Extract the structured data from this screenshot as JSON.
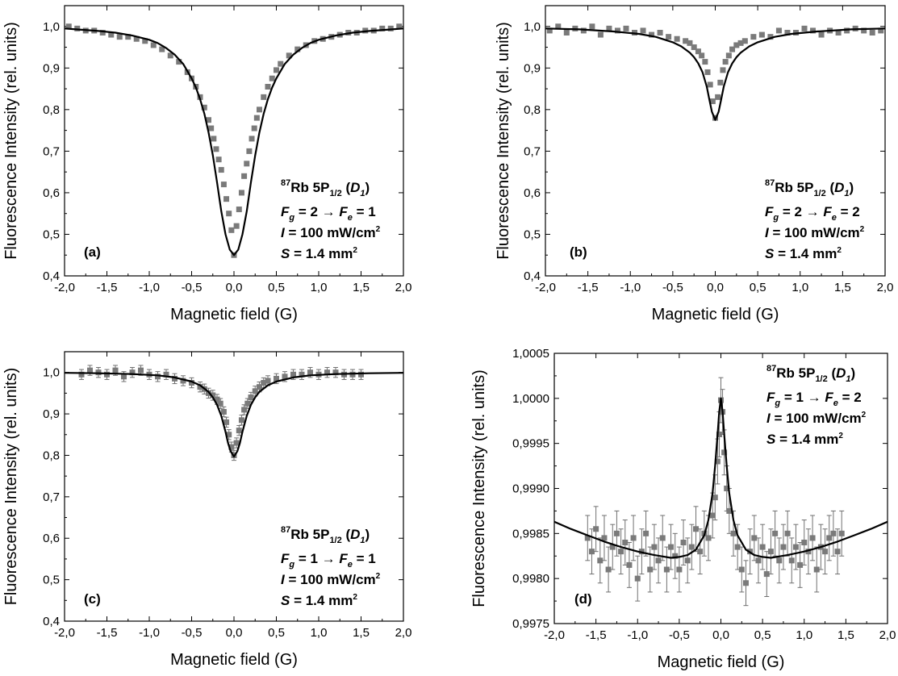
{
  "chart_data": [
    {
      "panel": "(a)",
      "type": "scatter",
      "xlabel": "Magnetic field (G)",
      "ylabel": "Fluorescence Intensity (rel. units)",
      "xlim": [
        -2.0,
        2.0
      ],
      "ylim": [
        0.4,
        1.05
      ],
      "x_ticks": [
        "-2,0",
        "-1,5",
        "-1,0",
        "-0,5",
        "0,0",
        "0,5",
        "1,0",
        "1,5",
        "2,0"
      ],
      "y_ticks": [
        "0,4",
        "0,5",
        "0,6",
        "0,7",
        "0,8",
        "0,9",
        "1,0"
      ],
      "annotation": {
        "isotope": "87",
        "element_level": "Rb 5P",
        "sub": "1/2",
        "line": "D",
        "line_sub": "1",
        "transition": {
          "Fg": "2",
          "Fe": "1"
        },
        "intensity": "= 100 mW/cm",
        "area": "= 1.4 mm"
      },
      "series": [
        {
          "kind": "points",
          "x": [
            -1.95,
            -1.85,
            -1.75,
            -1.65,
            -1.55,
            -1.45,
            -1.35,
            -1.25,
            -1.15,
            -1.05,
            -0.95,
            -0.85,
            -0.75,
            -0.65,
            -0.55,
            -0.5,
            -0.45,
            -0.4,
            -0.35,
            -0.3,
            -0.27,
            -0.24,
            -0.21,
            -0.18,
            -0.15,
            -0.12,
            -0.09,
            -0.06,
            -0.03,
            0.0,
            0.03,
            0.06,
            0.09,
            0.12,
            0.15,
            0.18,
            0.21,
            0.24,
            0.27,
            0.3,
            0.35,
            0.4,
            0.45,
            0.5,
            0.55,
            0.65,
            0.75,
            0.85,
            0.95,
            1.05,
            1.15,
            1.25,
            1.35,
            1.45,
            1.55,
            1.65,
            1.75,
            1.85,
            1.95
          ],
          "y": [
            1.0,
            0.995,
            0.99,
            0.99,
            0.985,
            0.98,
            0.975,
            0.975,
            0.97,
            0.965,
            0.955,
            0.945,
            0.93,
            0.915,
            0.89,
            0.875,
            0.855,
            0.83,
            0.805,
            0.775,
            0.755,
            0.73,
            0.705,
            0.68,
            0.655,
            0.62,
            0.585,
            0.55,
            0.51,
            0.45,
            0.52,
            0.56,
            0.6,
            0.64,
            0.67,
            0.7,
            0.73,
            0.755,
            0.78,
            0.8,
            0.83,
            0.855,
            0.875,
            0.895,
            0.91,
            0.93,
            0.945,
            0.955,
            0.965,
            0.97,
            0.975,
            0.98,
            0.985,
            0.985,
            0.99,
            0.99,
            0.995,
            0.995,
            1.0
          ]
        },
        {
          "kind": "curve",
          "x": [
            -2.0,
            -1.8,
            -1.6,
            -1.4,
            -1.2,
            -1.0,
            -0.9,
            -0.8,
            -0.7,
            -0.6,
            -0.5,
            -0.45,
            -0.4,
            -0.35,
            -0.3,
            -0.25,
            -0.2,
            -0.15,
            -0.1,
            -0.05,
            0.0,
            0.05,
            0.1,
            0.15,
            0.2,
            0.25,
            0.3,
            0.35,
            0.4,
            0.45,
            0.5,
            0.6,
            0.7,
            0.8,
            0.9,
            1.0,
            1.2,
            1.4,
            1.6,
            1.8,
            2.0
          ],
          "y": [
            0.995,
            0.992,
            0.989,
            0.985,
            0.978,
            0.968,
            0.96,
            0.948,
            0.932,
            0.91,
            0.875,
            0.853,
            0.825,
            0.79,
            0.745,
            0.69,
            0.625,
            0.555,
            0.5,
            0.463,
            0.45,
            0.463,
            0.5,
            0.555,
            0.625,
            0.69,
            0.745,
            0.79,
            0.825,
            0.853,
            0.875,
            0.91,
            0.932,
            0.948,
            0.96,
            0.968,
            0.978,
            0.985,
            0.989,
            0.992,
            0.995
          ]
        }
      ]
    },
    {
      "panel": "(b)",
      "type": "scatter",
      "xlabel": "Magnetic field (G)",
      "ylabel": "Fluorescence Intensity (rel. units)",
      "xlim": [
        -2.0,
        2.0
      ],
      "ylim": [
        0.4,
        1.05
      ],
      "x_ticks": [
        "-2,0",
        "-1,5",
        "-1,0",
        "-0,5",
        "0,0",
        "0,5",
        "1,0",
        "1,5",
        "2,0"
      ],
      "y_ticks": [
        "0,4",
        "0,5",
        "0,6",
        "0,7",
        "0,8",
        "0,9",
        "1,0"
      ],
      "annotation": {
        "isotope": "87",
        "element_level": "Rb 5P",
        "sub": "1/2",
        "line": "D",
        "line_sub": "1",
        "transition": {
          "Fg": "2",
          "Fe": "2"
        },
        "intensity": "= 100 mW/cm",
        "area": "= 1.4 mm"
      },
      "series": [
        {
          "kind": "points",
          "x": [
            -1.95,
            -1.85,
            -1.75,
            -1.65,
            -1.55,
            -1.45,
            -1.35,
            -1.25,
            -1.15,
            -1.05,
            -0.95,
            -0.85,
            -0.75,
            -0.65,
            -0.55,
            -0.45,
            -0.35,
            -0.3,
            -0.25,
            -0.2,
            -0.16,
            -0.12,
            -0.09,
            -0.06,
            -0.03,
            0.0,
            0.03,
            0.06,
            0.09,
            0.12,
            0.16,
            0.2,
            0.25,
            0.3,
            0.35,
            0.45,
            0.55,
            0.65,
            0.75,
            0.85,
            0.95,
            1.05,
            1.15,
            1.25,
            1.35,
            1.45,
            1.55,
            1.65,
            1.75,
            1.85,
            1.95
          ],
          "y": [
            0.99,
            1.0,
            0.985,
            0.995,
            0.99,
            1.0,
            0.98,
            0.995,
            0.99,
            0.995,
            0.985,
            0.99,
            0.98,
            0.985,
            0.975,
            0.97,
            0.965,
            0.96,
            0.95,
            0.94,
            0.93,
            0.915,
            0.89,
            0.86,
            0.82,
            0.78,
            0.83,
            0.865,
            0.895,
            0.915,
            0.93,
            0.945,
            0.955,
            0.96,
            0.965,
            0.975,
            0.98,
            0.975,
            0.99,
            0.985,
            0.985,
            0.995,
            0.99,
            0.98,
            0.99,
            0.985,
            0.99,
            0.995,
            0.99,
            0.985,
            0.99
          ]
        },
        {
          "kind": "curve",
          "x": [
            -2.0,
            -1.6,
            -1.2,
            -0.9,
            -0.7,
            -0.5,
            -0.4,
            -0.3,
            -0.25,
            -0.2,
            -0.15,
            -0.1,
            -0.07,
            -0.04,
            0.0,
            0.04,
            0.07,
            0.1,
            0.15,
            0.2,
            0.25,
            0.3,
            0.4,
            0.5,
            0.7,
            0.9,
            1.2,
            1.6,
            2.0
          ],
          "y": [
            0.995,
            0.993,
            0.988,
            0.982,
            0.975,
            0.962,
            0.952,
            0.937,
            0.926,
            0.911,
            0.89,
            0.855,
            0.825,
            0.795,
            0.775,
            0.795,
            0.825,
            0.855,
            0.89,
            0.911,
            0.926,
            0.937,
            0.952,
            0.962,
            0.975,
            0.982,
            0.988,
            0.993,
            0.995
          ]
        }
      ]
    },
    {
      "panel": "(c)",
      "type": "scatter",
      "xlabel": "Magnetic field (G)",
      "ylabel": "Fluorescence Intensity (rel. units)",
      "xlim": [
        -2.0,
        2.0
      ],
      "ylim": [
        0.4,
        1.05
      ],
      "x_ticks": [
        "-2,0",
        "-1,5",
        "-1,0",
        "-0,5",
        "0,0",
        "0,5",
        "1,0",
        "1,5",
        "2,0"
      ],
      "y_ticks": [
        "0,4",
        "0,5",
        "0,6",
        "0,7",
        "0,8",
        "0,9",
        "1,0"
      ],
      "annotation": {
        "isotope": "87",
        "element_level": "Rb 5P",
        "sub": "1/2",
        "line": "D",
        "line_sub": "1",
        "transition": {
          "Fg": "1",
          "Fe": "1"
        },
        "intensity": "= 100 mW/cm",
        "area": "= 1.4 mm"
      },
      "series": [
        {
          "kind": "points",
          "x": [
            -1.8,
            -1.7,
            -1.6,
            -1.5,
            -1.4,
            -1.3,
            -1.2,
            -1.1,
            -1.0,
            -0.9,
            -0.8,
            -0.7,
            -0.6,
            -0.5,
            -0.4,
            -0.35,
            -0.3,
            -0.25,
            -0.2,
            -0.16,
            -0.12,
            -0.09,
            -0.06,
            -0.03,
            0.0,
            0.03,
            0.06,
            0.09,
            0.12,
            0.16,
            0.2,
            0.25,
            0.3,
            0.35,
            0.4,
            0.5,
            0.6,
            0.7,
            0.8,
            0.9,
            1.0,
            1.1,
            1.2,
            1.3,
            1.4,
            1.5
          ],
          "y": [
            0.995,
            1.005,
            1.0,
            0.995,
            1.005,
            0.99,
            1.0,
            1.005,
            0.995,
            0.99,
            0.995,
            0.985,
            0.98,
            0.975,
            0.965,
            0.96,
            0.95,
            0.945,
            0.935,
            0.925,
            0.905,
            0.88,
            0.85,
            0.82,
            0.8,
            0.83,
            0.86,
            0.885,
            0.91,
            0.925,
            0.94,
            0.955,
            0.965,
            0.975,
            0.98,
            0.985,
            0.99,
            0.995,
            0.995,
            1.0,
            0.995,
            1.0,
            1.0,
            0.995,
            0.995,
            0.995
          ],
          "err": 0.012
        },
        {
          "kind": "curve",
          "x": [
            -2.0,
            -1.6,
            -1.2,
            -0.9,
            -0.7,
            -0.5,
            -0.4,
            -0.3,
            -0.25,
            -0.2,
            -0.15,
            -0.1,
            -0.07,
            -0.04,
            0.0,
            0.04,
            0.07,
            0.1,
            0.15,
            0.2,
            0.25,
            0.3,
            0.4,
            0.5,
            0.7,
            0.9,
            1.2,
            1.6,
            2.0
          ],
          "y": [
            0.999,
            0.998,
            0.996,
            0.993,
            0.988,
            0.978,
            0.969,
            0.953,
            0.94,
            0.922,
            0.895,
            0.857,
            0.83,
            0.81,
            0.797,
            0.81,
            0.83,
            0.857,
            0.895,
            0.922,
            0.94,
            0.953,
            0.969,
            0.978,
            0.988,
            0.993,
            0.996,
            0.998,
            0.999
          ]
        }
      ]
    },
    {
      "panel": "(d)",
      "type": "scatter",
      "xlabel": "Magnetic field (G)",
      "ylabel": "Fluorescence Intensity (rel. units)",
      "xlim": [
        -2.0,
        2.0
      ],
      "ylim": [
        0.9975,
        1.0005
      ],
      "x_ticks": [
        "-2,0",
        "-1,5",
        "-1,0",
        "-0,5",
        "0,0",
        "0,5",
        "1,0",
        "1,5",
        "2,0"
      ],
      "y_ticks": [
        "0,9975",
        "0,9980",
        "0,9985",
        "0,9990",
        "0,9995",
        "1,0000",
        "1,0005"
      ],
      "annotation": {
        "isotope": "87",
        "element_level": "Rb 5P",
        "sub": "1/2",
        "line": "D",
        "line_sub": "1",
        "transition": {
          "Fg": "1",
          "Fe": "2"
        },
        "intensity": "= 100 mW/cm",
        "area": "= 1.4 mm"
      },
      "series": [
        {
          "kind": "points",
          "x": [
            -1.6,
            -1.55,
            -1.5,
            -1.45,
            -1.4,
            -1.35,
            -1.3,
            -1.25,
            -1.2,
            -1.15,
            -1.1,
            -1.05,
            -1.0,
            -0.95,
            -0.9,
            -0.85,
            -0.8,
            -0.75,
            -0.7,
            -0.65,
            -0.6,
            -0.55,
            -0.5,
            -0.45,
            -0.4,
            -0.35,
            -0.3,
            -0.25,
            -0.2,
            -0.15,
            -0.1,
            -0.07,
            -0.04,
            -0.02,
            0.0,
            0.02,
            0.04,
            0.07,
            0.1,
            0.15,
            0.2,
            0.25,
            0.3,
            0.35,
            0.4,
            0.45,
            0.5,
            0.55,
            0.6,
            0.65,
            0.7,
            0.75,
            0.8,
            0.85,
            0.9,
            0.95,
            1.0,
            1.05,
            1.1,
            1.15,
            1.2,
            1.25,
            1.3,
            1.35,
            1.4,
            1.45
          ],
          "y": [
            0.99845,
            0.9983,
            0.99855,
            0.9982,
            0.99845,
            0.9981,
            0.99835,
            0.9985,
            0.9983,
            0.9984,
            0.99815,
            0.99845,
            0.998,
            0.9983,
            0.9985,
            0.9981,
            0.99835,
            0.9982,
            0.99845,
            0.9981,
            0.99835,
            0.99825,
            0.9981,
            0.9984,
            0.9982,
            0.99835,
            0.99855,
            0.9983,
            0.9985,
            0.99845,
            0.9987,
            0.9989,
            0.9993,
            0.9996,
            0.99998,
            0.99985,
            0.9994,
            0.999,
            0.99875,
            0.9985,
            0.99835,
            0.9981,
            0.99795,
            0.9983,
            0.99845,
            0.9982,
            0.99835,
            0.99805,
            0.9983,
            0.9985,
            0.9982,
            0.99835,
            0.9985,
            0.9982,
            0.99835,
            0.99815,
            0.9984,
            0.9983,
            0.99845,
            0.9981,
            0.99835,
            0.9983,
            0.99845,
            0.9985,
            0.9983,
            0.9985
          ],
          "err": 0.00025
        },
        {
          "kind": "curve",
          "x": [
            -2.0,
            -1.8,
            -1.6,
            -1.4,
            -1.2,
            -1.0,
            -0.8,
            -0.6,
            -0.5,
            -0.4,
            -0.3,
            -0.2,
            -0.15,
            -0.1,
            -0.07,
            -0.04,
            -0.02,
            0.0,
            0.02,
            0.04,
            0.07,
            0.1,
            0.15,
            0.2,
            0.3,
            0.4,
            0.5,
            0.6,
            0.8,
            1.0,
            1.2,
            1.4,
            1.6,
            1.8,
            2.0
          ],
          "y": [
            0.99863,
            0.99855,
            0.99848,
            0.99841,
            0.99835,
            0.9983,
            0.99826,
            0.99823,
            0.99824,
            0.99826,
            0.99832,
            0.99848,
            0.99865,
            0.99895,
            0.99925,
            0.9996,
            0.99985,
            1.0,
            0.99985,
            0.9996,
            0.99925,
            0.99895,
            0.99865,
            0.99848,
            0.99832,
            0.99826,
            0.99824,
            0.99823,
            0.99826,
            0.9983,
            0.99835,
            0.99841,
            0.99848,
            0.99855,
            0.99863
          ]
        }
      ]
    }
  ]
}
